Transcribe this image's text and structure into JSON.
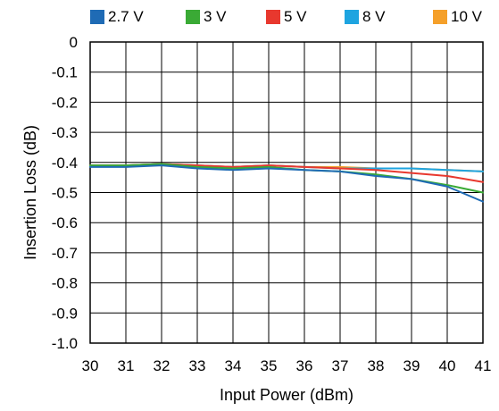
{
  "chart_data": {
    "type": "line",
    "xlabel": "Input Power (dBm)",
    "ylabel": "Insertion Loss (dB)",
    "xlim": [
      30,
      41
    ],
    "ylim": [
      -1.0,
      0
    ],
    "x_ticks": [
      "30",
      "31",
      "32",
      "33",
      "34",
      "35",
      "36",
      "37",
      "38",
      "39",
      "40",
      "41"
    ],
    "y_ticks": [
      "0",
      "-0.1",
      "-0.2",
      "-0.3",
      "-0.4",
      "-0.5",
      "-0.6",
      "-0.7",
      "-0.8",
      "-0.9",
      "-1.0"
    ],
    "grid": true,
    "legend_position": "top",
    "x": [
      30,
      31,
      32,
      33,
      34,
      35,
      36,
      37,
      38,
      39,
      40,
      41
    ],
    "series": [
      {
        "name": "2.7 V",
        "color": "#1f6bb5",
        "values": [
          -0.415,
          -0.415,
          -0.41,
          -0.42,
          -0.425,
          -0.42,
          -0.425,
          -0.43,
          -0.445,
          -0.455,
          -0.48,
          -0.53
        ]
      },
      {
        "name": "3 V",
        "color": "#3aaa35",
        "values": [
          -0.41,
          -0.41,
          -0.405,
          -0.415,
          -0.42,
          -0.415,
          -0.425,
          -0.43,
          -0.44,
          -0.455,
          -0.475,
          -0.5
        ]
      },
      {
        "name": "5 V",
        "color": "#e8382e",
        "values": [
          -0.41,
          -0.41,
          -0.405,
          -0.41,
          -0.415,
          -0.41,
          -0.415,
          -0.42,
          -0.425,
          -0.435,
          -0.445,
          -0.465
        ]
      },
      {
        "name": "8 V",
        "color": "#1ea4e0",
        "values": [
          -0.41,
          -0.41,
          -0.405,
          -0.41,
          -0.415,
          -0.41,
          -0.415,
          -0.42,
          -0.42,
          -0.42,
          -0.425,
          -0.43
        ]
      },
      {
        "name": "10 V",
        "color": "#f5a02a",
        "values": [
          -0.41,
          -0.41,
          -0.405,
          -0.41,
          -0.415,
          -0.41,
          -0.415,
          -0.415,
          -0.42,
          -0.42,
          -0.425,
          -0.43
        ]
      }
    ]
  }
}
